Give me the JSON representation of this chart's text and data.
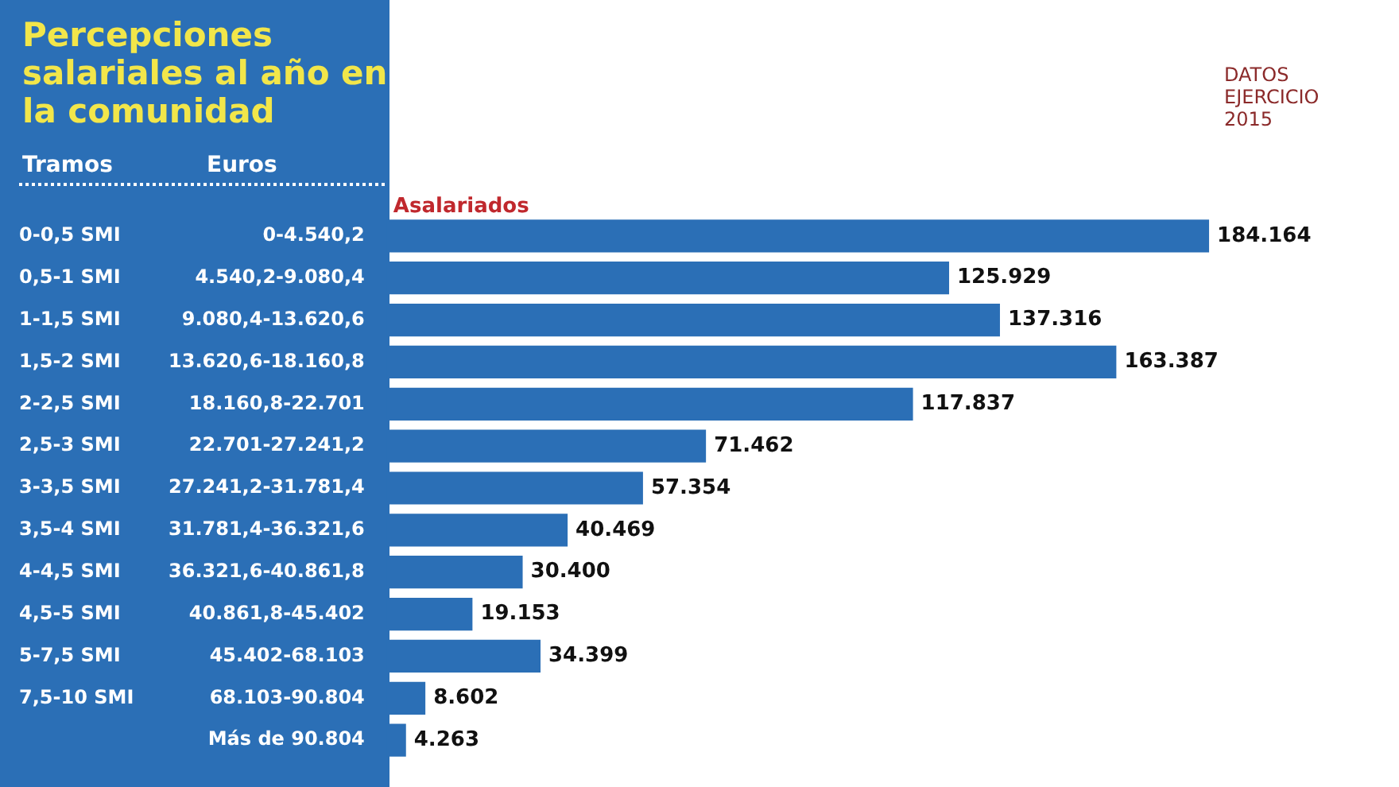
{
  "chart_data": {
    "type": "bar",
    "orientation": "horizontal",
    "title": "Percepciones salariales al año en la comunidad",
    "ylabel": "Euros",
    "categories": [
      "0-4.540,2",
      "4.540,2-9.080,4",
      "9.080,4-13.620,6",
      "13.620,6-18.160,8",
      "18.160,8-22.701",
      "22.701-27.241,2",
      "27.241,2-31.781,4",
      "31.781,4-36.321,6",
      "36.321,6-40.861,8",
      "40.861,8-45.402",
      "45.402-68.103",
      "68.103-90.804",
      "Más de 90.804"
    ],
    "series": [
      {
        "name": "Asalariados",
        "color": "#2b6fb6",
        "values": [
          184164,
          125929,
          137316,
          163387,
          117837,
          71462,
          57354,
          40469,
          30400,
          19153,
          34399,
          8602,
          4263
        ],
        "value_labels": [
          "184.164",
          "125.929",
          "137.316",
          "163.387",
          "117.837",
          "71.462",
          "57.354",
          "40.469",
          "30.400",
          "19.153",
          "34.399",
          "8.602",
          "4.263"
        ]
      }
    ],
    "annotations": [
      "Tramos",
      "DATOS EJERCICIO 2015",
      "0-0,5 SMI",
      "0,5-1 SMI",
      "1-1,5 SMI",
      "1,5-2 SMI",
      "2-2,5 SMI",
      "2,5-3 SMI",
      "3-3,5 SMI",
      "3,5-4 SMI",
      "4-4,5 SMI",
      "4,5-5 SMI",
      "5-7,5 SMI",
      "7,5-10 SMI"
    ],
    "grid": false,
    "legend": false
  }
}
